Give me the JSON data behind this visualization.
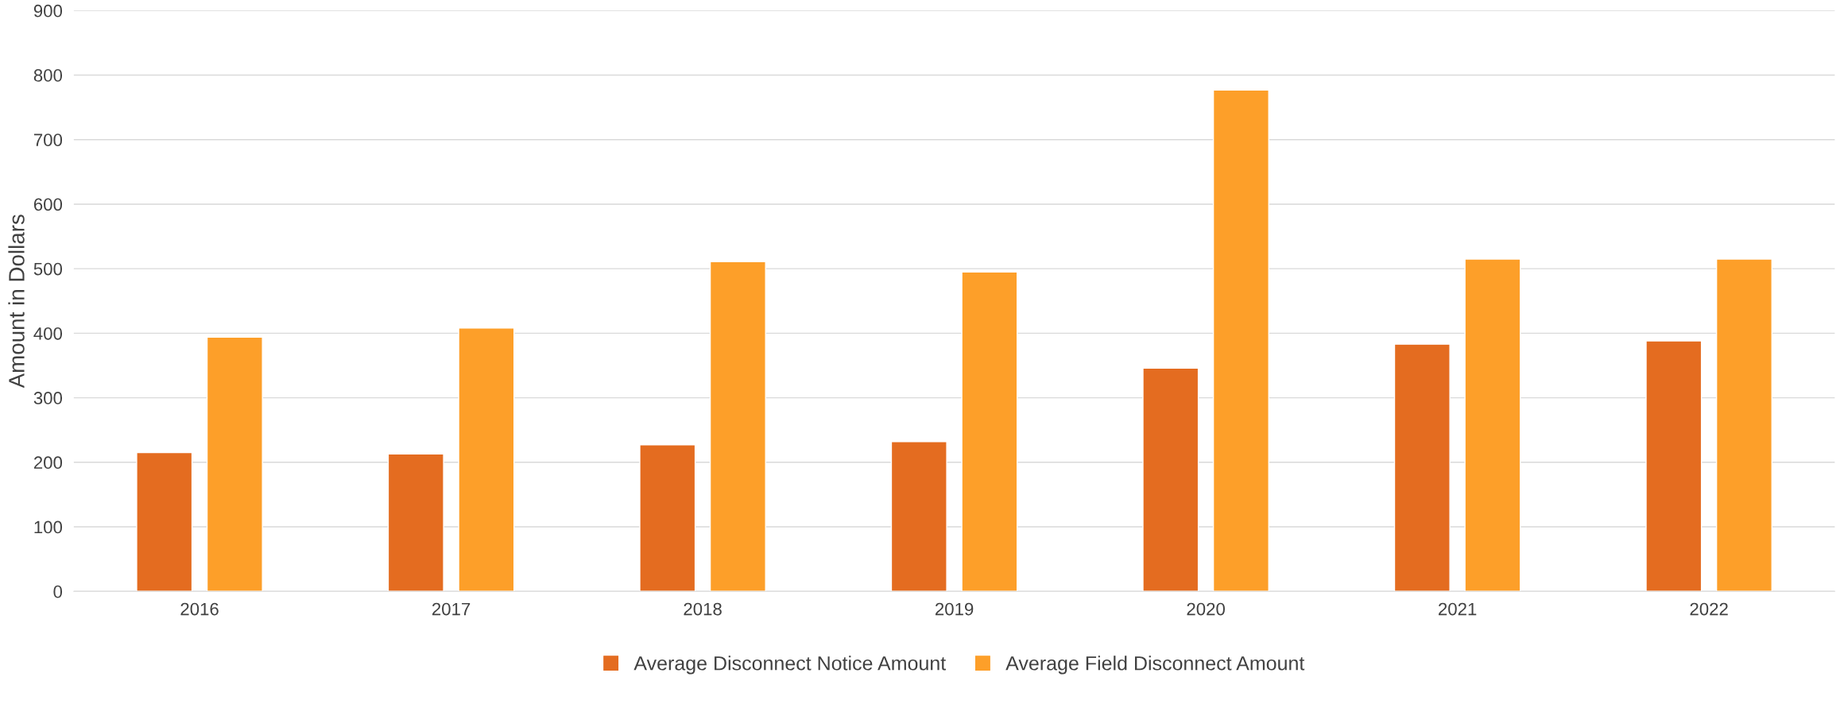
{
  "chart_data": {
    "type": "bar",
    "ylabel": "Amount in Dollars",
    "categories": [
      "2016",
      "2017",
      "2018",
      "2019",
      "2020",
      "2021",
      "2022"
    ],
    "series": [
      {
        "name": "Average Disconnect Notice Amount",
        "color": "#e46c20",
        "values": [
          215,
          213,
          227,
          232,
          346,
          383,
          388
        ]
      },
      {
        "name": "Average Field Disconnect Amount",
        "color": "#fd9f29",
        "values": [
          394,
          408,
          511,
          495,
          777,
          515,
          515
        ]
      }
    ],
    "ylim": [
      0,
      900
    ],
    "yticks": [
      0,
      100,
      200,
      300,
      400,
      500,
      600,
      700,
      800,
      900
    ],
    "grid": "y",
    "legend": "bottom"
  }
}
